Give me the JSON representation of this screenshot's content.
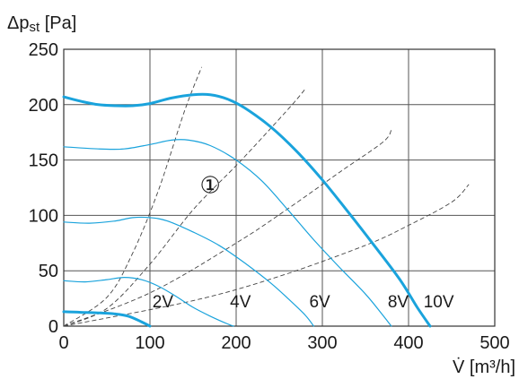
{
  "chart_data": {
    "type": "line",
    "ylabel_main": "Δp",
    "ylabel_sub": "st",
    "ylabel_unit": " [Pa]",
    "xlabel": "V̇ [m³/h]",
    "xlim": [
      0,
      500
    ],
    "ylim": [
      0,
      250
    ],
    "x_ticks": [
      "0",
      "100",
      "200",
      "300",
      "400",
      "500"
    ],
    "y_ticks": [
      "0",
      "50",
      "100",
      "150",
      "200",
      "250"
    ],
    "grid": true,
    "annotation": "①",
    "colors": {
      "fan_curve": "#1aa3dc",
      "system_curve": "#444444",
      "grid": "#555555"
    },
    "series": [
      {
        "name": "2V",
        "points": [
          [
            0,
            13
          ],
          [
            20,
            12.5
          ],
          [
            40,
            12
          ],
          [
            60,
            11
          ],
          [
            75,
            9
          ],
          [
            90,
            4
          ],
          [
            100,
            0
          ]
        ]
      },
      {
        "name": "4V",
        "points": [
          [
            0,
            41
          ],
          [
            25,
            40
          ],
          [
            50,
            42
          ],
          [
            70,
            44
          ],
          [
            90,
            42
          ],
          [
            110,
            36
          ],
          [
            130,
            27
          ],
          [
            150,
            17
          ],
          [
            170,
            9
          ],
          [
            190,
            2
          ],
          [
            197,
            0
          ]
        ]
      },
      {
        "name": "6V",
        "points": [
          [
            0,
            94
          ],
          [
            30,
            93
          ],
          [
            60,
            95
          ],
          [
            80,
            98
          ],
          [
            100,
            98
          ],
          [
            120,
            95
          ],
          [
            150,
            85
          ],
          [
            180,
            73
          ],
          [
            210,
            57
          ],
          [
            240,
            39
          ],
          [
            260,
            25
          ],
          [
            280,
            10
          ],
          [
            290,
            0
          ]
        ]
      },
      {
        "name": "8V",
        "points": [
          [
            0,
            162
          ],
          [
            40,
            160
          ],
          [
            70,
            160
          ],
          [
            100,
            164
          ],
          [
            125,
            168
          ],
          [
            145,
            168
          ],
          [
            170,
            163
          ],
          [
            200,
            150
          ],
          [
            230,
            131
          ],
          [
            260,
            105
          ],
          [
            290,
            78
          ],
          [
            320,
            53
          ],
          [
            350,
            29
          ],
          [
            370,
            10
          ],
          [
            380,
            0
          ]
        ]
      },
      {
        "name": "10V",
        "points": [
          [
            0,
            207
          ],
          [
            20,
            203
          ],
          [
            40,
            200
          ],
          [
            60,
            199
          ],
          [
            80,
            199
          ],
          [
            100,
            201
          ],
          [
            125,
            206
          ],
          [
            150,
            209
          ],
          [
            170,
            209
          ],
          [
            190,
            205
          ],
          [
            210,
            197
          ],
          [
            240,
            180
          ],
          [
            270,
            158
          ],
          [
            300,
            132
          ],
          [
            330,
            103
          ],
          [
            360,
            73
          ],
          [
            390,
            42
          ],
          [
            410,
            17
          ],
          [
            425,
            0
          ]
        ]
      }
    ],
    "system_curves": [
      {
        "points": [
          [
            0,
            0
          ],
          [
            50,
            26
          ],
          [
            80,
            66
          ],
          [
            110,
            123
          ],
          [
            140,
            194
          ],
          [
            160,
            234
          ]
        ]
      },
      {
        "points": [
          [
            0,
            0
          ],
          [
            50,
            16
          ],
          [
            100,
            56
          ],
          [
            150,
            105
          ],
          [
            200,
            145
          ],
          [
            230,
            170
          ],
          [
            265,
            200
          ],
          [
            280,
            214
          ]
        ]
      },
      {
        "points": [
          [
            0,
            0
          ],
          [
            100,
            30
          ],
          [
            200,
            75
          ],
          [
            260,
            106
          ],
          [
            320,
            139
          ],
          [
            370,
            166
          ],
          [
            380,
            177
          ]
        ]
      },
      {
        "points": [
          [
            0,
            0
          ],
          [
            150,
            23
          ],
          [
            250,
            45
          ],
          [
            350,
            73
          ],
          [
            400,
            91
          ],
          [
            450,
            112
          ],
          [
            470,
            128
          ]
        ]
      }
    ],
    "voltage_labels": [
      {
        "text": "2V",
        "x": 115,
        "y": 17
      },
      {
        "text": "4V",
        "x": 205,
        "y": 17
      },
      {
        "text": "6V",
        "x": 297,
        "y": 17
      },
      {
        "text": "8V",
        "x": 388,
        "y": 17
      },
      {
        "text": "10V",
        "x": 435,
        "y": 17
      }
    ],
    "annotation_pos": {
      "x": 170,
      "y": 120
    }
  }
}
